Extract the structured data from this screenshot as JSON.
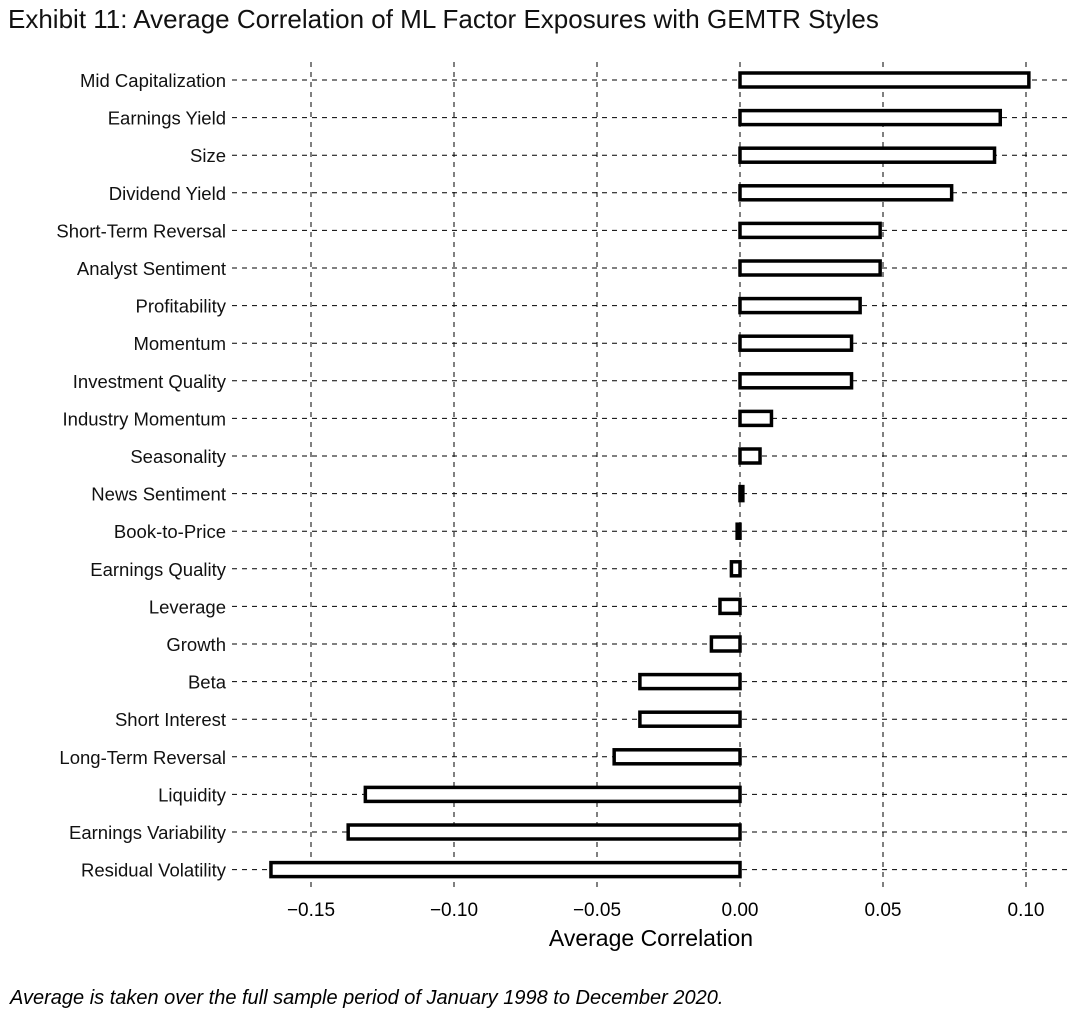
{
  "title": "Exhibit 11: Average Correlation of ML Factor Exposures with GEMTR Styles",
  "footnote": "Average is taken over the full sample period of January 1998 to December 2020.",
  "chart_data": {
    "type": "bar",
    "orientation": "horizontal",
    "title": "Exhibit 11: Average Correlation of ML Factor Exposures with GEMTR Styles",
    "xlabel": "Average Correlation",
    "ylabel": "",
    "xlim": [
      -0.18,
      0.11
    ],
    "xticks": [
      -0.15,
      -0.1,
      -0.05,
      0.0,
      0.05,
      0.1
    ],
    "xtick_labels": [
      "−0.15",
      "−0.10",
      "−0.05",
      "0.00",
      "0.05",
      "0.10"
    ],
    "grid": "dashed",
    "legend": "none",
    "bar_fill": "#ffffff",
    "bar_edge": "#000000",
    "categories": [
      "Mid Capitalization",
      "Earnings Yield",
      "Size",
      "Dividend Yield",
      "Short-Term Reversal",
      "Analyst Sentiment",
      "Profitability",
      "Momentum",
      "Investment Quality",
      "Industry Momentum",
      "Seasonality",
      "News Sentiment",
      "Book-to-Price",
      "Earnings Quality",
      "Leverage",
      "Growth",
      "Beta",
      "Short Interest",
      "Long-Term Reversal",
      "Liquidity",
      "Earnings Variability",
      "Residual Volatility"
    ],
    "values": [
      0.101,
      0.091,
      0.089,
      0.074,
      0.049,
      0.049,
      0.042,
      0.039,
      0.039,
      0.011,
      0.007,
      0.001,
      -0.001,
      -0.003,
      -0.007,
      -0.01,
      -0.035,
      -0.035,
      -0.044,
      -0.131,
      -0.137,
      -0.164
    ]
  }
}
